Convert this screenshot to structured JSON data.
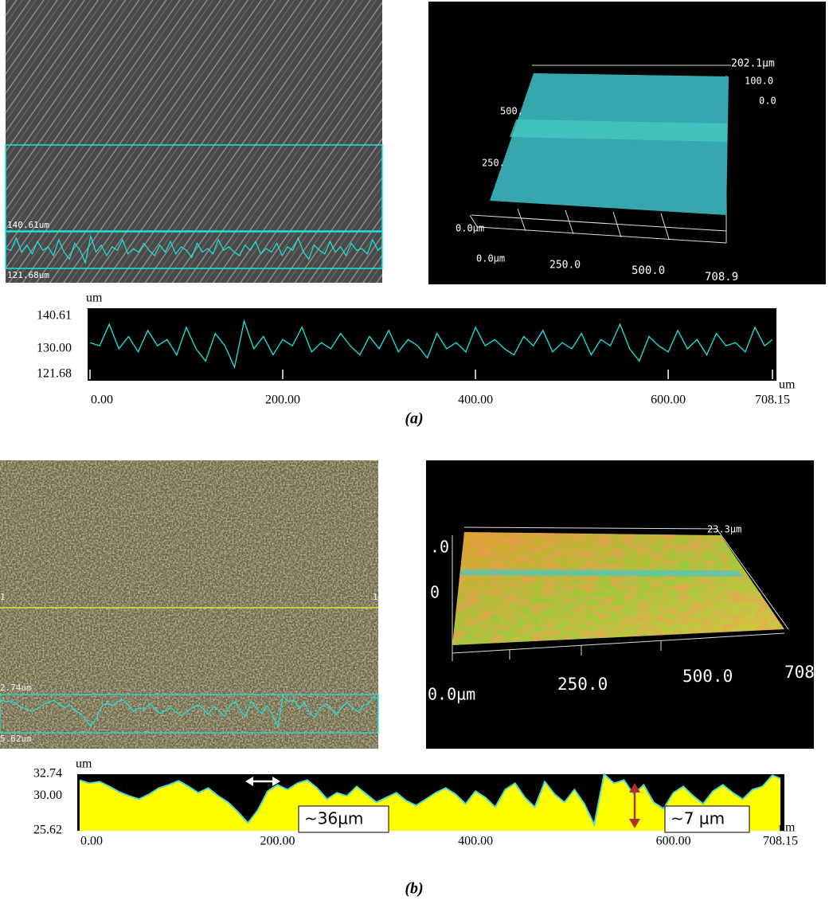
{
  "chart_data": [
    {
      "type": "line",
      "color": "#19e6e0",
      "xlabel": "um",
      "ylabel": "um",
      "x": [
        0,
        10,
        20,
        30,
        40,
        50,
        60,
        70,
        80,
        90,
        100,
        110,
        120,
        130,
        140,
        150,
        160,
        170,
        180,
        190,
        200,
        210,
        220,
        230,
        240,
        250,
        260,
        270,
        280,
        290,
        300,
        310,
        320,
        330,
        340,
        350,
        360,
        370,
        380,
        390,
        400,
        410,
        420,
        430,
        440,
        450,
        460,
        470,
        480,
        490,
        500,
        510,
        520,
        530,
        540,
        550,
        560,
        570,
        580,
        590,
        600,
        610,
        620,
        630,
        640,
        650,
        660,
        670,
        680,
        690,
        700,
        708.15
      ],
      "values": [
        132,
        131,
        138,
        130,
        134,
        129,
        136,
        131,
        133,
        128,
        137,
        130,
        126,
        135,
        131,
        124,
        139,
        130,
        134,
        128,
        133,
        131,
        137,
        129,
        132,
        130,
        135,
        131,
        128,
        134,
        130,
        136,
        129,
        133,
        131,
        127,
        135,
        130,
        132,
        129,
        137,
        131,
        133,
        130,
        128,
        134,
        131,
        136,
        129,
        132,
        130,
        135,
        128,
        133,
        131,
        138,
        130,
        126,
        134,
        131,
        129,
        136,
        130,
        133,
        128,
        135,
        131,
        132,
        129,
        137,
        131,
        133
      ],
      "xlim": [
        0,
        708.15
      ],
      "ylim": [
        121.68,
        140.61
      ],
      "xticks": [
        {
          "value": 0,
          "label": "0.00"
        },
        {
          "value": 200,
          "label": "200.00"
        },
        {
          "value": 400,
          "label": "400.00"
        },
        {
          "value": 600,
          "label": "600.00"
        },
        708.15
      ],
      "yticks": [
        140.61,
        {
          "value": 130,
          "label": "130.00"
        },
        121.68
      ]
    },
    {
      "type": "area",
      "color": "#ffff00",
      "line_color": "#4fd8cf",
      "xlabel": "um",
      "ylabel": "um",
      "x": [
        0,
        10,
        20,
        30,
        40,
        50,
        60,
        70,
        80,
        90,
        100,
        110,
        120,
        130,
        140,
        150,
        160,
        170,
        180,
        190,
        200,
        210,
        220,
        230,
        240,
        250,
        260,
        270,
        280,
        290,
        300,
        310,
        320,
        330,
        340,
        350,
        360,
        370,
        380,
        390,
        400,
        410,
        420,
        430,
        440,
        450,
        460,
        470,
        480,
        490,
        500,
        510,
        520,
        530,
        540,
        550,
        560,
        570,
        580,
        590,
        600,
        610,
        620,
        630,
        640,
        650,
        660,
        670,
        680,
        690,
        700,
        708.15
      ],
      "values": [
        32.0,
        31.6,
        31.8,
        31.2,
        30.5,
        30.0,
        29.6,
        30.2,
        31.0,
        31.4,
        31.9,
        31.2,
        30.4,
        31.0,
        30.0,
        29.2,
        28.0,
        26.6,
        28.2,
        30.6,
        31.4,
        30.8,
        31.6,
        32.0,
        31.0,
        29.6,
        30.4,
        30.0,
        31.2,
        30.2,
        29.2,
        29.8,
        30.4,
        29.4,
        28.8,
        29.6,
        30.4,
        31.0,
        30.2,
        29.0,
        30.6,
        29.8,
        28.6,
        30.8,
        31.6,
        29.8,
        28.6,
        31.8,
        30.2,
        29.2,
        30.8,
        29.0,
        26.4,
        32.74,
        31.6,
        32.0,
        30.2,
        31.4,
        29.2,
        28.4,
        30.4,
        31.2,
        30.0,
        29.0,
        30.6,
        31.4,
        30.4,
        29.6,
        30.8,
        31.2,
        32.6,
        32.2
      ],
      "xlim": [
        0,
        708.15
      ],
      "ylim": [
        25.62,
        32.74
      ],
      "xticks": [
        {
          "value": 0,
          "label": "0.00"
        },
        {
          "value": 200,
          "label": "200.00"
        },
        {
          "value": 400,
          "label": "400.00"
        },
        {
          "value": 600,
          "label": "600.00"
        },
        708.15
      ],
      "yticks": [
        32.74,
        {
          "value": 30,
          "label": "30.00"
        },
        25.62
      ],
      "annotations": [
        "~36µm",
        "~7 µm"
      ]
    }
  ],
  "panels": [
    {
      "caption": "(a)",
      "image_labels": [
        "140.61um",
        "121.68um"
      ],
      "view3d_labels": [
        "202.1µm",
        "100.0",
        "0.0",
        "500.",
        "250.",
        "0.0µm",
        "0.0µm",
        "250.0",
        "500.0",
        "708.9"
      ]
    },
    {
      "caption": "(b)",
      "image_labels": [
        "2.74um",
        "5.62um",
        "1",
        "1"
      ],
      "view3d_labels": [
        "23.3µm",
        ".0",
        "0",
        "0.0µm",
        "250.0",
        "500.0",
        "708"
      ]
    }
  ]
}
